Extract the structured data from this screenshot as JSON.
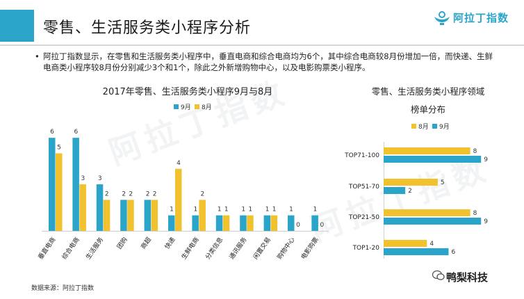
{
  "header": {
    "title": "零售、生活服务类小程序分析",
    "logo_text": "阿拉丁指数",
    "accent_color": "#2aa5c9"
  },
  "summary": {
    "bullet": "•",
    "text": "阿拉丁指数显示，在零售和生活服务类小程序中，垂直电商和综合电商均为6个，其中综合电商较8月份增加一倍，而快递、生鲜电商类小程序较8月份分别减少3个和1个，除此之外新增购物中心，以及电影购票类小程序。"
  },
  "watermark": {
    "text": "阿拉丁指数"
  },
  "footer": {
    "source": "数据来源：阿拉丁指数",
    "brand": "鸭梨科技",
    "brand_icon": "wechat-icon"
  },
  "colors": {
    "sep": "#2aa5c9",
    "aug": "#f2c12e"
  },
  "chart_data": [
    {
      "type": "bar",
      "title": "2017年零售、生活服务类小程序9月与8月",
      "categories": [
        "垂直电商",
        "综合电商",
        "生活服务",
        "团购",
        "商超",
        "快递",
        "生鲜电商",
        "分类信息",
        "通讯服务",
        "闲置交易",
        "购物中心",
        "电影购票"
      ],
      "series": [
        {
          "name": "9月",
          "color": "#2aa5c9",
          "values": [
            6,
            6,
            3,
            2,
            2,
            1,
            1,
            1,
            1,
            1,
            1,
            1
          ]
        },
        {
          "name": "8月",
          "color": "#f2c12e",
          "values": [
            5,
            3,
            2,
            2,
            2,
            4,
            2,
            1,
            1,
            1,
            0,
            0
          ]
        }
      ],
      "legend": "top-center",
      "ylim": [
        0,
        6.5
      ],
      "grid": false
    },
    {
      "type": "bar",
      "orientation": "horizontal",
      "title": "零售、生活服务类小程序领域",
      "subtitle": "榜单分布",
      "categories": [
        "TOP71-100",
        "TOP51-70",
        "TOP21-50",
        "TOP1-20"
      ],
      "series": [
        {
          "name": "8月",
          "color": "#f2c12e",
          "values": [
            8,
            5,
            8,
            4
          ]
        },
        {
          "name": "9月",
          "color": "#2aa5c9",
          "values": [
            9,
            2,
            9,
            6
          ]
        }
      ],
      "legend": "top-center",
      "xlim": [
        0,
        9.5
      ],
      "grid": false
    }
  ]
}
